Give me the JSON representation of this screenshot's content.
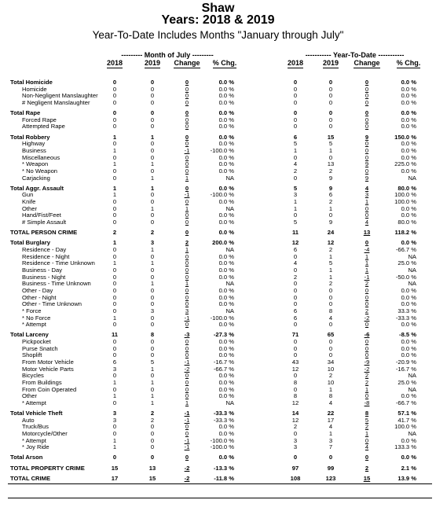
{
  "header": {
    "title": "Shaw",
    "years": "Years:  2018  &  2019",
    "subtitle": "Year-To-Date Includes Months \"January through July\""
  },
  "groups": {
    "month": "--------- Month of July ---------",
    "ytd": "----------- Year-To-Date -----------"
  },
  "columns": {
    "month": [
      "2018",
      "2019",
      "Change",
      "% Chg."
    ],
    "ytd": [
      "2018",
      "2019",
      "Change",
      "% Chg."
    ]
  },
  "rows": [
    {
      "label": "Total Homicide",
      "bold": true,
      "m": [
        "0",
        "0",
        "0",
        "0.0 %"
      ],
      "y": [
        "0",
        "0",
        "0",
        "0.0 %"
      ]
    },
    {
      "label": "Homicide",
      "indent": true,
      "m": [
        "0",
        "0",
        "0",
        "0.0 %"
      ],
      "y": [
        "0",
        "0",
        "0",
        "0.0 %"
      ]
    },
    {
      "label": "Non-Negligent Manslaughter",
      "indent": true,
      "m": [
        "0",
        "0",
        "0",
        "0.0 %"
      ],
      "y": [
        "0",
        "0",
        "0",
        "0.0 %"
      ]
    },
    {
      "label": "# Negligent Manslaughter",
      "indent": true,
      "m": [
        "0",
        "0",
        "0",
        "0.0 %"
      ],
      "y": [
        "0",
        "0",
        "0",
        "0.0 %"
      ]
    },
    {
      "gap": 1,
      "label": "Total Rape",
      "bold": true,
      "m": [
        "0",
        "0",
        "0",
        "0.0 %"
      ],
      "y": [
        "0",
        "0",
        "0",
        "0.0 %"
      ]
    },
    {
      "label": "Forced Rape",
      "indent": true,
      "m": [
        "0",
        "0",
        "0",
        "0.0 %"
      ],
      "y": [
        "0",
        "0",
        "0",
        "0.0 %"
      ]
    },
    {
      "label": "Attempted Rape",
      "indent": true,
      "m": [
        "0",
        "0",
        "0",
        "0.0 %"
      ],
      "y": [
        "0",
        "0",
        "0",
        "0.0 %"
      ]
    },
    {
      "gap": 1,
      "label": "Total Robbery",
      "bold": true,
      "m": [
        "1",
        "1",
        "0",
        "0.0 %"
      ],
      "y": [
        "6",
        "15",
        "9",
        "150.0 %"
      ]
    },
    {
      "label": "Highway",
      "indent": true,
      "m": [
        "0",
        "0",
        "0",
        "0.0 %"
      ],
      "y": [
        "5",
        "5",
        "0",
        "0.0 %"
      ]
    },
    {
      "label": "Business",
      "indent": true,
      "m": [
        "1",
        "0",
        "-1",
        "-100.0 %"
      ],
      "y": [
        "1",
        "1",
        "0",
        "0.0 %"
      ]
    },
    {
      "label": "Miscellaneous",
      "indent": true,
      "m": [
        "0",
        "0",
        "0",
        "0.0 %"
      ],
      "y": [
        "0",
        "0",
        "0",
        "0.0 %"
      ]
    },
    {
      "label": "* Weapon",
      "indent": true,
      "m": [
        "1",
        "1",
        "0",
        "0.0 %"
      ],
      "y": [
        "4",
        "13",
        "9",
        "225.0 %"
      ]
    },
    {
      "label": "* No Weapon",
      "indent": true,
      "m": [
        "0",
        "0",
        "0",
        "0.0 %"
      ],
      "y": [
        "2",
        "2",
        "0",
        "0.0 %"
      ]
    },
    {
      "label": "Carjacking",
      "indent": true,
      "m": [
        "0",
        "1",
        "1",
        "NA"
      ],
      "y": [
        "0",
        "9",
        "9",
        "NA"
      ]
    },
    {
      "gap": 1,
      "label": "Total Aggr. Assault",
      "bold": true,
      "m": [
        "1",
        "1",
        "0",
        "0.0 %"
      ],
      "y": [
        "5",
        "9",
        "4",
        "80.0 %"
      ]
    },
    {
      "label": "Gun",
      "indent": true,
      "m": [
        "1",
        "0",
        "-1",
        "-100.0 %"
      ],
      "y": [
        "3",
        "6",
        "3",
        "100.0 %"
      ]
    },
    {
      "label": "Knife",
      "indent": true,
      "m": [
        "0",
        "0",
        "0",
        "0.0 %"
      ],
      "y": [
        "1",
        "2",
        "1",
        "100.0 %"
      ]
    },
    {
      "label": "Other",
      "indent": true,
      "m": [
        "0",
        "1",
        "1",
        "NA"
      ],
      "y": [
        "1",
        "1",
        "0",
        "0.0 %"
      ]
    },
    {
      "label": "Hand/Fist/Feet",
      "indent": true,
      "m": [
        "0",
        "0",
        "0",
        "0.0 %"
      ],
      "y": [
        "0",
        "0",
        "0",
        "0.0 %"
      ]
    },
    {
      "label": "# Simple Assault",
      "indent": true,
      "m": [
        "0",
        "0",
        "0",
        "0.0 %"
      ],
      "y": [
        "5",
        "9",
        "4",
        "80.0 %"
      ]
    },
    {
      "gap": 1,
      "label": "TOTAL PERSON CRIME",
      "bold": true,
      "m": [
        "2",
        "2",
        "0",
        "0.0 %"
      ],
      "y": [
        "11",
        "24",
        "13",
        "118.2 %"
      ]
    },
    {
      "gap": 1,
      "label": "Total Burglary",
      "bold": true,
      "m": [
        "1",
        "3",
        "2",
        "200.0 %"
      ],
      "y": [
        "12",
        "12",
        "0",
        "0.0 %"
      ]
    },
    {
      "label": "Residence - Day",
      "indent": true,
      "m": [
        "0",
        "1",
        "1",
        "NA"
      ],
      "y": [
        "6",
        "2",
        "-4",
        "-66.7 %"
      ]
    },
    {
      "label": "Residence - Night",
      "indent": true,
      "m": [
        "0",
        "0",
        "0",
        "0.0 %"
      ],
      "y": [
        "0",
        "1",
        "1",
        "NA"
      ]
    },
    {
      "label": "Residence - Time Unknown",
      "indent": true,
      "m": [
        "1",
        "1",
        "0",
        "0.0 %"
      ],
      "y": [
        "4",
        "5",
        "1",
        "25.0 %"
      ]
    },
    {
      "label": "Business - Day",
      "indent": true,
      "m": [
        "0",
        "0",
        "0",
        "0.0 %"
      ],
      "y": [
        "0",
        "1",
        "1",
        "NA"
      ]
    },
    {
      "label": "Business - Night",
      "indent": true,
      "m": [
        "0",
        "0",
        "0",
        "0.0 %"
      ],
      "y": [
        "2",
        "1",
        "-1",
        "-50.0 %"
      ]
    },
    {
      "label": "Business - Time Unknown",
      "indent": true,
      "m": [
        "0",
        "1",
        "1",
        "NA"
      ],
      "y": [
        "0",
        "2",
        "2",
        "NA"
      ]
    },
    {
      "label": "Other - Day",
      "indent": true,
      "m": [
        "0",
        "0",
        "0",
        "0.0 %"
      ],
      "y": [
        "0",
        "0",
        "0",
        "0.0 %"
      ]
    },
    {
      "label": "Other - Night",
      "indent": true,
      "m": [
        "0",
        "0",
        "0",
        "0.0 %"
      ],
      "y": [
        "0",
        "0",
        "0",
        "0.0 %"
      ]
    },
    {
      "label": "Other - Time Unknown",
      "indent": true,
      "m": [
        "0",
        "0",
        "0",
        "0.0 %"
      ],
      "y": [
        "0",
        "0",
        "0",
        "0.0 %"
      ]
    },
    {
      "label": "* Force",
      "indent": true,
      "m": [
        "0",
        "3",
        "3",
        "NA"
      ],
      "y": [
        "6",
        "8",
        "2",
        "33.3 %"
      ]
    },
    {
      "label": "* No Force",
      "indent": true,
      "m": [
        "1",
        "0",
        "-1",
        "-100.0 %"
      ],
      "y": [
        "6",
        "4",
        "-2",
        "-33.3 %"
      ]
    },
    {
      "label": "* Attempt",
      "indent": true,
      "m": [
        "0",
        "0",
        "0",
        "0.0 %"
      ],
      "y": [
        "0",
        "0",
        "0",
        "0.0 %"
      ]
    },
    {
      "gap": 1,
      "label": "Total Larceny",
      "bold": true,
      "m": [
        "11",
        "8",
        "-3",
        "-27.3 %"
      ],
      "y": [
        "71",
        "65",
        "-6",
        "-8.5 %"
      ]
    },
    {
      "label": "Pickpocket",
      "indent": true,
      "m": [
        "0",
        "0",
        "0",
        "0.0 %"
      ],
      "y": [
        "0",
        "0",
        "0",
        "0.0 %"
      ]
    },
    {
      "label": "Purse Snatch",
      "indent": true,
      "m": [
        "0",
        "0",
        "0",
        "0.0 %"
      ],
      "y": [
        "0",
        "0",
        "0",
        "0.0 %"
      ]
    },
    {
      "label": "Shoplift",
      "indent": true,
      "m": [
        "0",
        "0",
        "0",
        "0.0 %"
      ],
      "y": [
        "0",
        "0",
        "0",
        "0.0 %"
      ]
    },
    {
      "label": "From Motor Vehicle",
      "indent": true,
      "m": [
        "6",
        "5",
        "-1",
        "-16.7 %"
      ],
      "y": [
        "43",
        "34",
        "-9",
        "-20.9 %"
      ]
    },
    {
      "label": "Motor Vehicle Parts",
      "indent": true,
      "m": [
        "3",
        "1",
        "-2",
        "-66.7 %"
      ],
      "y": [
        "12",
        "10",
        "-2",
        "-16.7 %"
      ]
    },
    {
      "label": "Bicycles",
      "indent": true,
      "m": [
        "0",
        "0",
        "0",
        "0.0 %"
      ],
      "y": [
        "0",
        "2",
        "2",
        "NA"
      ]
    },
    {
      "label": "From Buildings",
      "indent": true,
      "m": [
        "1",
        "1",
        "0",
        "0.0 %"
      ],
      "y": [
        "8",
        "10",
        "2",
        "25.0 %"
      ]
    },
    {
      "label": "From Coin Operated",
      "indent": true,
      "m": [
        "0",
        "0",
        "0",
        "0.0 %"
      ],
      "y": [
        "0",
        "1",
        "1",
        "NA"
      ]
    },
    {
      "label": "Other",
      "indent": true,
      "m": [
        "1",
        "1",
        "0",
        "0.0 %"
      ],
      "y": [
        "8",
        "8",
        "0",
        "0.0 %"
      ]
    },
    {
      "label": "* Attempt",
      "indent": true,
      "m": [
        "0",
        "1",
        "1",
        "NA"
      ],
      "y": [
        "12",
        "4",
        "-8",
        "-66.7 %"
      ]
    },
    {
      "gap": 1,
      "label": "Total Vehicle Theft",
      "bold": true,
      "m": [
        "3",
        "2",
        "-1",
        "-33.3 %"
      ],
      "y": [
        "14",
        "22",
        "8",
        "57.1 %"
      ]
    },
    {
      "label": "Auto",
      "indent": true,
      "m": [
        "3",
        "2",
        "-1",
        "-33.3 %"
      ],
      "y": [
        "12",
        "17",
        "5",
        "41.7 %"
      ]
    },
    {
      "label": "Truck/Bus",
      "indent": true,
      "m": [
        "0",
        "0",
        "0",
        "0.0 %"
      ],
      "y": [
        "2",
        "4",
        "2",
        "100.0 %"
      ]
    },
    {
      "label": "Motorcycle/Other",
      "indent": true,
      "m": [
        "0",
        "0",
        "0",
        "0.0 %"
      ],
      "y": [
        "0",
        "1",
        "1",
        "NA"
      ]
    },
    {
      "label": "* Attempt",
      "indent": true,
      "m": [
        "1",
        "0",
        "-1",
        "-100.0 %"
      ],
      "y": [
        "3",
        "3",
        "0",
        "0.0 %"
      ]
    },
    {
      "label": "* Joy Ride",
      "indent": true,
      "m": [
        "1",
        "0",
        "-1",
        "-100.0 %"
      ],
      "y": [
        "3",
        "7",
        "4",
        "133.3 %"
      ]
    },
    {
      "gap": 1,
      "label": "Total Arson",
      "bold": true,
      "m": [
        "0",
        "0",
        "0",
        "0.0 %"
      ],
      "y": [
        "0",
        "0",
        "0",
        "0.0 %"
      ]
    },
    {
      "gap": 1,
      "label": "TOTAL PROPERTY CRIME",
      "bold": true,
      "m": [
        "15",
        "13",
        "-2",
        "-13.3 %"
      ],
      "y": [
        "97",
        "99",
        "2",
        "2.1 %"
      ]
    },
    {
      "gap": 1,
      "label": "TOTAL CRIME",
      "bold": true,
      "m": [
        "17",
        "15",
        "-2",
        "-11.8 %"
      ],
      "y": [
        "108",
        "123",
        "15",
        "13.9 %"
      ]
    }
  ]
}
